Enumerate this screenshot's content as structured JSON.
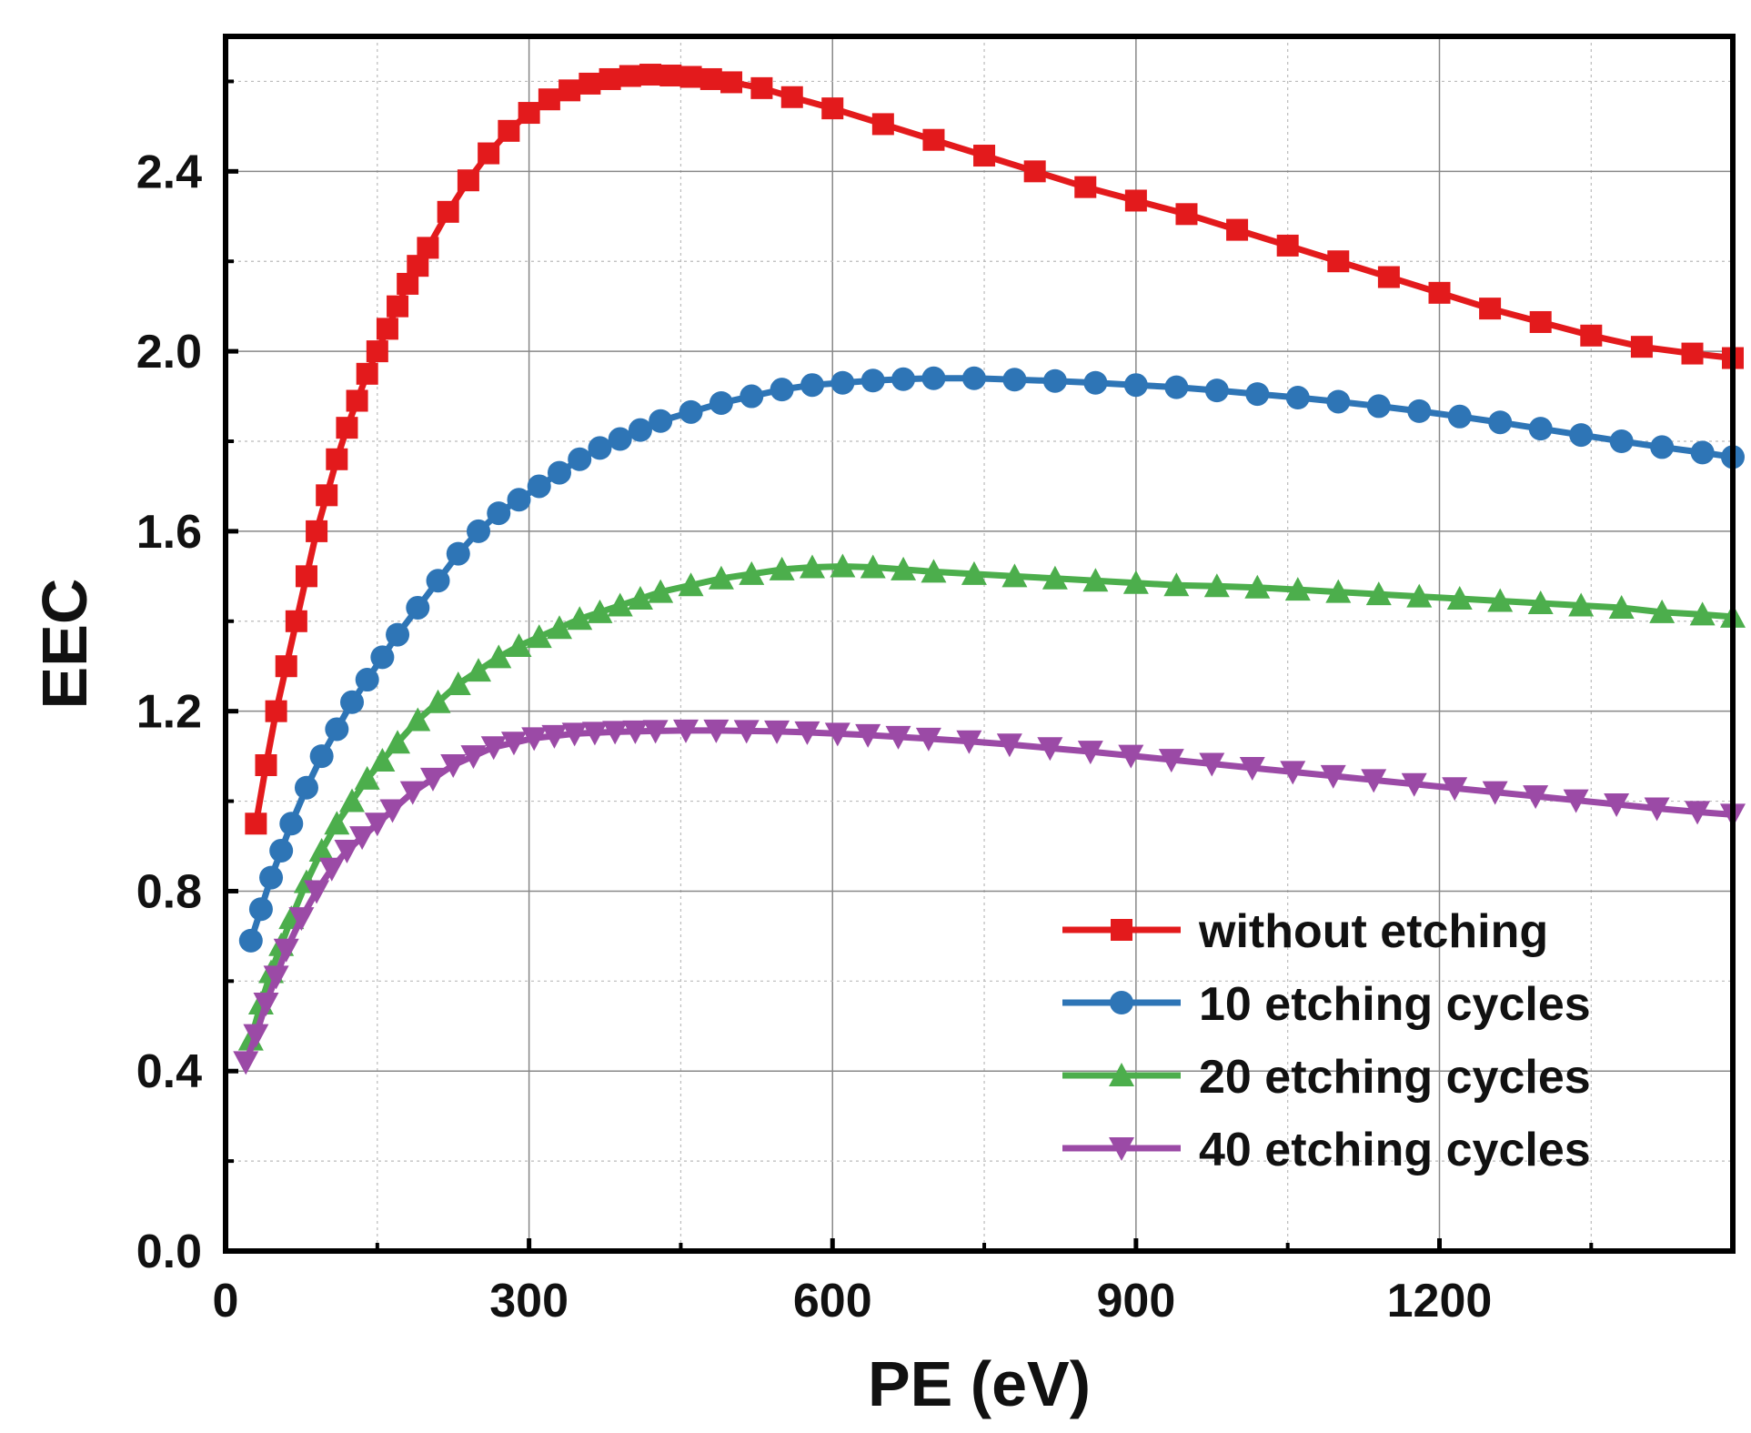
{
  "chart_data": {
    "type": "line",
    "title": "",
    "xlabel": "PE (eV)",
    "ylabel": "EEC",
    "xlim": [
      0,
      1490
    ],
    "ylim": [
      0,
      2.7
    ],
    "xticks": [
      0,
      300,
      600,
      900,
      1200
    ],
    "xtick_labels": [
      "0",
      "300",
      "600",
      "900",
      "1200"
    ],
    "yticks": [
      0,
      0.4,
      0.8,
      1.2,
      1.6,
      2.0,
      2.4
    ],
    "ytick_labels": [
      "0.0",
      "0.4",
      "0.8",
      "1.2",
      "1.6",
      "2.0",
      "2.4"
    ],
    "grid": true,
    "legend_position": "bottom-right",
    "series": [
      {
        "name": "without etching",
        "color": "#e31a1c",
        "marker": "square",
        "x": [
          30,
          40,
          50,
          60,
          70,
          80,
          90,
          100,
          110,
          120,
          130,
          140,
          150,
          160,
          170,
          180,
          190,
          200,
          220,
          240,
          260,
          280,
          300,
          320,
          340,
          360,
          380,
          400,
          420,
          440,
          460,
          480,
          500,
          530,
          560,
          600,
          650,
          700,
          750,
          800,
          850,
          900,
          950,
          1000,
          1050,
          1100,
          1150,
          1200,
          1250,
          1300,
          1350,
          1400,
          1450,
          1490
        ],
        "y": [
          0.95,
          1.08,
          1.2,
          1.3,
          1.4,
          1.5,
          1.6,
          1.68,
          1.76,
          1.83,
          1.89,
          1.95,
          2.0,
          2.05,
          2.1,
          2.15,
          2.19,
          2.23,
          2.31,
          2.38,
          2.44,
          2.49,
          2.53,
          2.56,
          2.58,
          2.595,
          2.605,
          2.612,
          2.615,
          2.613,
          2.61,
          2.605,
          2.598,
          2.585,
          2.565,
          2.54,
          2.505,
          2.47,
          2.435,
          2.4,
          2.365,
          2.335,
          2.305,
          2.27,
          2.235,
          2.2,
          2.165,
          2.13,
          2.095,
          2.065,
          2.035,
          2.01,
          1.995,
          1.985
        ]
      },
      {
        "name": "10 etching cycles",
        "color": "#2e75b6",
        "marker": "circle",
        "x": [
          25,
          35,
          45,
          55,
          65,
          80,
          95,
          110,
          125,
          140,
          155,
          170,
          190,
          210,
          230,
          250,
          270,
          290,
          310,
          330,
          350,
          370,
          390,
          410,
          430,
          460,
          490,
          520,
          550,
          580,
          610,
          640,
          670,
          700,
          740,
          780,
          820,
          860,
          900,
          940,
          980,
          1020,
          1060,
          1100,
          1140,
          1180,
          1220,
          1260,
          1300,
          1340,
          1380,
          1420,
          1460,
          1490
        ],
        "y": [
          0.69,
          0.76,
          0.83,
          0.89,
          0.95,
          1.03,
          1.1,
          1.16,
          1.22,
          1.27,
          1.32,
          1.37,
          1.43,
          1.49,
          1.55,
          1.6,
          1.64,
          1.67,
          1.7,
          1.73,
          1.76,
          1.785,
          1.805,
          1.825,
          1.845,
          1.865,
          1.885,
          1.9,
          1.915,
          1.925,
          1.93,
          1.935,
          1.938,
          1.94,
          1.94,
          1.937,
          1.934,
          1.93,
          1.925,
          1.92,
          1.913,
          1.905,
          1.897,
          1.888,
          1.878,
          1.867,
          1.855,
          1.842,
          1.828,
          1.814,
          1.8,
          1.787,
          1.775,
          1.765
        ]
      },
      {
        "name": "20 etching cycles",
        "color": "#4cae4c",
        "marker": "triangle-up",
        "x": [
          25,
          35,
          45,
          55,
          65,
          80,
          95,
          110,
          125,
          140,
          155,
          170,
          190,
          210,
          230,
          250,
          270,
          290,
          310,
          330,
          350,
          370,
          390,
          410,
          430,
          460,
          490,
          520,
          550,
          580,
          610,
          640,
          670,
          700,
          740,
          780,
          820,
          860,
          900,
          940,
          980,
          1020,
          1060,
          1100,
          1140,
          1180,
          1220,
          1260,
          1300,
          1340,
          1380,
          1420,
          1460,
          1490
        ],
        "y": [
          0.47,
          0.55,
          0.62,
          0.68,
          0.74,
          0.82,
          0.89,
          0.95,
          1.0,
          1.05,
          1.09,
          1.13,
          1.18,
          1.22,
          1.26,
          1.29,
          1.32,
          1.345,
          1.365,
          1.385,
          1.405,
          1.42,
          1.435,
          1.45,
          1.465,
          1.48,
          1.495,
          1.505,
          1.515,
          1.52,
          1.522,
          1.52,
          1.515,
          1.51,
          1.505,
          1.5,
          1.495,
          1.49,
          1.485,
          1.48,
          1.478,
          1.475,
          1.47,
          1.465,
          1.46,
          1.455,
          1.45,
          1.445,
          1.44,
          1.435,
          1.43,
          1.42,
          1.415,
          1.41
        ]
      },
      {
        "name": "40 etching cycles",
        "color": "#9b4aa6",
        "marker": "triangle-down",
        "x": [
          20,
          30,
          40,
          50,
          60,
          75,
          90,
          105,
          120,
          135,
          150,
          165,
          185,
          205,
          225,
          245,
          265,
          285,
          305,
          325,
          345,
          365,
          385,
          405,
          425,
          455,
          485,
          515,
          545,
          575,
          605,
          635,
          665,
          695,
          735,
          775,
          815,
          855,
          895,
          935,
          975,
          1015,
          1055,
          1095,
          1135,
          1175,
          1215,
          1255,
          1295,
          1335,
          1375,
          1415,
          1455,
          1490
        ],
        "y": [
          0.42,
          0.48,
          0.55,
          0.61,
          0.67,
          0.74,
          0.8,
          0.85,
          0.89,
          0.92,
          0.95,
          0.98,
          1.02,
          1.05,
          1.08,
          1.1,
          1.12,
          1.13,
          1.14,
          1.145,
          1.15,
          1.152,
          1.154,
          1.155,
          1.156,
          1.157,
          1.157,
          1.156,
          1.155,
          1.153,
          1.15,
          1.147,
          1.143,
          1.139,
          1.133,
          1.126,
          1.118,
          1.11,
          1.101,
          1.092,
          1.083,
          1.074,
          1.065,
          1.056,
          1.047,
          1.038,
          1.029,
          1.02,
          1.011,
          1.002,
          0.993,
          0.984,
          0.976,
          0.97
        ]
      }
    ]
  }
}
